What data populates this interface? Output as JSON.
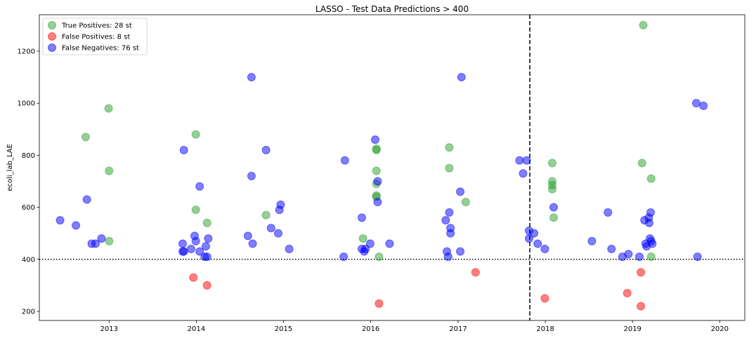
{
  "chart_data": {
    "type": "scatter",
    "title": "LASSO - Test Data Predictions > 400",
    "xlabel": "",
    "ylabel": "ecoli_lab_LAE",
    "x_is_date": true,
    "xlim": [
      "2012-03-15",
      "2020-04-15"
    ],
    "ylim": [
      165,
      1340
    ],
    "x_ticks": [
      {
        "label": "2013",
        "date": "2013-01-01"
      },
      {
        "label": "2014",
        "date": "2014-01-01"
      },
      {
        "label": "2015",
        "date": "2015-01-01"
      },
      {
        "label": "2016",
        "date": "2016-01-01"
      },
      {
        "label": "2017",
        "date": "2017-01-01"
      },
      {
        "label": "2018",
        "date": "2018-01-01"
      },
      {
        "label": "2019",
        "date": "2019-01-01"
      },
      {
        "label": "2020",
        "date": "2020-01-01"
      }
    ],
    "y_ticks": [
      200,
      400,
      600,
      800,
      1000,
      1200
    ],
    "grid": false,
    "legend_position": "top-left",
    "threshold_line": {
      "y": 400,
      "style": "dotted",
      "color": "#000000"
    },
    "split_line": {
      "x": "2017-10-28",
      "style": "dashed",
      "color": "#000000"
    },
    "series": [
      {
        "name": "True Positives: 28 st",
        "color": "#2ca02c",
        "points": [
          {
            "x": "2012-09-25",
            "y": 870
          },
          {
            "x": "2012-12-30",
            "y": 980
          },
          {
            "x": "2013-01-01",
            "y": 740
          },
          {
            "x": "2013-01-01",
            "y": 470
          },
          {
            "x": "2013-12-30",
            "y": 880
          },
          {
            "x": "2013-12-30",
            "y": 590
          },
          {
            "x": "2014-02-15",
            "y": 540
          },
          {
            "x": "2014-10-20",
            "y": 570
          },
          {
            "x": "2015-11-30",
            "y": 480
          },
          {
            "x": "2016-01-25",
            "y": 825
          },
          {
            "x": "2016-01-25",
            "y": 820
          },
          {
            "x": "2016-01-25",
            "y": 740
          },
          {
            "x": "2016-01-25",
            "y": 690
          },
          {
            "x": "2016-01-25",
            "y": 645
          },
          {
            "x": "2016-01-25",
            "y": 640
          },
          {
            "x": "2016-02-05",
            "y": 410
          },
          {
            "x": "2016-11-25",
            "y": 830
          },
          {
            "x": "2016-11-25",
            "y": 750
          },
          {
            "x": "2017-02-02",
            "y": 620
          },
          {
            "x": "2018-01-30",
            "y": 770
          },
          {
            "x": "2018-01-30",
            "y": 700
          },
          {
            "x": "2018-01-30",
            "y": 685
          },
          {
            "x": "2018-01-30",
            "y": 670
          },
          {
            "x": "2018-02-05",
            "y": 560
          },
          {
            "x": "2019-02-15",
            "y": 1300
          },
          {
            "x": "2019-02-10",
            "y": 770
          },
          {
            "x": "2019-03-20",
            "y": 710
          },
          {
            "x": "2019-03-20",
            "y": 410
          }
        ]
      },
      {
        "name": "False Positives: 8 st",
        "color": "#ff0000",
        "points": [
          {
            "x": "2013-12-20",
            "y": 330
          },
          {
            "x": "2014-02-15",
            "y": 300
          },
          {
            "x": "2016-02-05",
            "y": 230
          },
          {
            "x": "2017-03-15",
            "y": 350
          },
          {
            "x": "2017-12-30",
            "y": 250
          },
          {
            "x": "2018-12-10",
            "y": 270
          },
          {
            "x": "2019-02-05",
            "y": 350
          },
          {
            "x": "2019-02-05",
            "y": 220
          }
        ]
      },
      {
        "name": "False Negatives: 76 st",
        "color": "#0000ff",
        "points": [
          {
            "x": "2012-06-10",
            "y": 550
          },
          {
            "x": "2012-08-15",
            "y": 530
          },
          {
            "x": "2012-09-30",
            "y": 630
          },
          {
            "x": "2012-10-20",
            "y": 460
          },
          {
            "x": "2012-11-05",
            "y": 460
          },
          {
            "x": "2012-11-30",
            "y": 480
          },
          {
            "x": "2013-11-10",
            "y": 820
          },
          {
            "x": "2013-11-05",
            "y": 460
          },
          {
            "x": "2013-11-05",
            "y": 430
          },
          {
            "x": "2013-11-10",
            "y": 430
          },
          {
            "x": "2013-12-10",
            "y": 440
          },
          {
            "x": "2013-12-25",
            "y": 490
          },
          {
            "x": "2013-12-30",
            "y": 470
          },
          {
            "x": "2014-01-15",
            "y": 680
          },
          {
            "x": "2014-01-15",
            "y": 430
          },
          {
            "x": "2014-02-05",
            "y": 410
          },
          {
            "x": "2014-02-10",
            "y": 450
          },
          {
            "x": "2014-02-15",
            "y": 410
          },
          {
            "x": "2014-02-20",
            "y": 480
          },
          {
            "x": "2014-08-20",
            "y": 1100
          },
          {
            "x": "2014-08-20",
            "y": 720
          },
          {
            "x": "2014-08-05",
            "y": 490
          },
          {
            "x": "2014-08-25",
            "y": 460
          },
          {
            "x": "2014-10-20",
            "y": 820
          },
          {
            "x": "2014-11-10",
            "y": 520
          },
          {
            "x": "2014-12-10",
            "y": 500
          },
          {
            "x": "2014-12-15",
            "y": 590
          },
          {
            "x": "2014-12-20",
            "y": 610
          },
          {
            "x": "2015-01-25",
            "y": 440
          },
          {
            "x": "2015-09-15",
            "y": 780
          },
          {
            "x": "2015-09-10",
            "y": 410
          },
          {
            "x": "2015-11-25",
            "y": 560
          },
          {
            "x": "2015-11-25",
            "y": 440
          },
          {
            "x": "2015-12-10",
            "y": 440
          },
          {
            "x": "2015-12-05",
            "y": 430
          },
          {
            "x": "2015-12-30",
            "y": 460
          },
          {
            "x": "2016-01-20",
            "y": 860
          },
          {
            "x": "2016-01-30",
            "y": 700
          },
          {
            "x": "2016-01-30",
            "y": 620
          },
          {
            "x": "2016-03-20",
            "y": 460
          },
          {
            "x": "2016-11-10",
            "y": 550
          },
          {
            "x": "2016-11-25",
            "y": 580
          },
          {
            "x": "2016-11-30",
            "y": 520
          },
          {
            "x": "2016-11-30",
            "y": 500
          },
          {
            "x": "2016-11-15",
            "y": 430
          },
          {
            "x": "2016-11-20",
            "y": 410
          },
          {
            "x": "2017-01-10",
            "y": 660
          },
          {
            "x": "2017-01-10",
            "y": 430
          },
          {
            "x": "2017-01-15",
            "y": 1100
          },
          {
            "x": "2017-09-15",
            "y": 780
          },
          {
            "x": "2017-10-15",
            "y": 780
          },
          {
            "x": "2017-09-30",
            "y": 730
          },
          {
            "x": "2017-10-25",
            "y": 510
          },
          {
            "x": "2017-10-25",
            "y": 480
          },
          {
            "x": "2017-11-15",
            "y": 500
          },
          {
            "x": "2017-11-30",
            "y": 460
          },
          {
            "x": "2017-12-30",
            "y": 440
          },
          {
            "x": "2018-02-05",
            "y": 600
          },
          {
            "x": "2018-07-15",
            "y": 470
          },
          {
            "x": "2018-09-20",
            "y": 580
          },
          {
            "x": "2018-10-05",
            "y": 440
          },
          {
            "x": "2018-11-20",
            "y": 410
          },
          {
            "x": "2018-12-15",
            "y": 420
          },
          {
            "x": "2019-01-30",
            "y": 410
          },
          {
            "x": "2019-02-20",
            "y": 550
          },
          {
            "x": "2019-02-25",
            "y": 460
          },
          {
            "x": "2019-03-01",
            "y": 450
          },
          {
            "x": "2019-03-10",
            "y": 560
          },
          {
            "x": "2019-03-12",
            "y": 540
          },
          {
            "x": "2019-03-15",
            "y": 480
          },
          {
            "x": "2019-03-18",
            "y": 580
          },
          {
            "x": "2019-03-25",
            "y": 460
          },
          {
            "x": "2019-03-20",
            "y": 470
          },
          {
            "x": "2019-09-25",
            "y": 1000
          },
          {
            "x": "2019-09-30",
            "y": 410
          },
          {
            "x": "2019-10-25",
            "y": 990
          }
        ]
      }
    ]
  }
}
